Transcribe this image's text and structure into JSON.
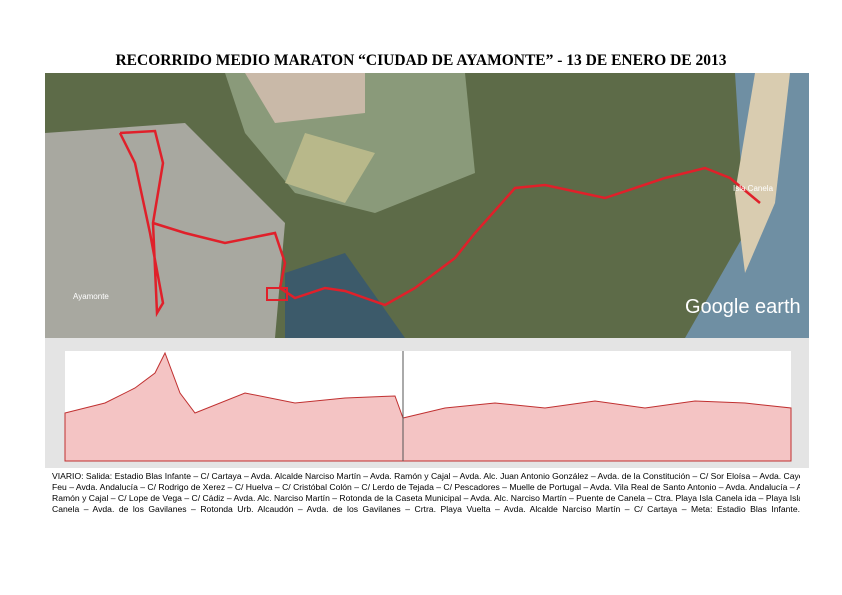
{
  "header": {
    "title": "RECORRIDO MEDIO MARATON “CIUDAD DE AYAMONTE” -  13 DE ENERO DE 2013"
  },
  "map": {
    "labels": [
      "Ayamonte",
      "Isla Canela"
    ],
    "brand": "Google earth"
  },
  "route": {
    "lines": [
      "VIARIO: Salida: Estadio Blas Infante – C/ Cartaya – Avda. Alcalde Narciso Martín – Avda. Ramón y Cajal – Avda. Alc. Juan Antonio González – Avda. de la Constitución – C/ Sor Eloísa – Avda. Cayetano",
      "Feu – Avda. Andalucía – C/ Rodrigo de Xerez – C/ Huelva – C/ Cristóbal Colón – C/ Lerdo de Tejada – C/ Pescadores – Muelle de Portugal – Avda. Vila Real de Santo Antonio – Avda. Andalucía – Avda.",
      "Ramón y Cajal – C/ Lope de Vega – C/ Cádiz – Avda. Alc. Narciso Martín – Rotonda de la Caseta Municipal – Avda. Alc. Narciso Martín – Puente de Canela – Ctra. Playa Isla Canela ida – Playa Isla",
      "Canela – Avda. de los Gavilanes – Rotonda Urb. Alcaudón – Avda. de los Gavilanes – Crtra. Playa Vuelta – Avda. Alcalde Narciso Martín – C/ Cartaya – Meta: Estadio Blas Infante."
    ]
  }
}
